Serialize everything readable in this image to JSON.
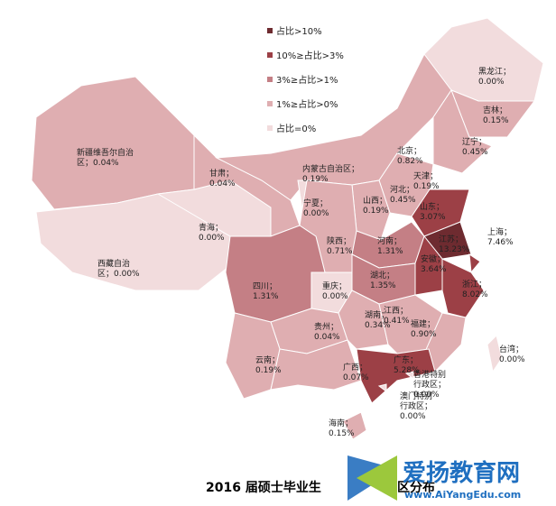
{
  "legend": [
    {
      "label": "占比>10%",
      "color": "#6e2b30"
    },
    {
      "label": "10%≥占比>3%",
      "color": "#9c4046"
    },
    {
      "label": "3%≥占比>1%",
      "color": "#c47f85"
    },
    {
      "label": "1%≥占比>0%",
      "color": "#dfaeb1"
    },
    {
      "label": "占比=0%",
      "color": "#f2dcdd"
    }
  ],
  "regions": [
    {
      "label": [
        "新疆维吾尔自治",
        "区；0.04%"
      ],
      "color": "#dfaeb1"
    },
    {
      "label": [
        "西藏自治",
        "区；0.00%"
      ],
      "color": "#f2dcdd"
    },
    {
      "label": [
        "青海；",
        "0.00%"
      ],
      "color": "#f2dcdd"
    },
    {
      "label": [
        "甘肃；",
        "0.04%"
      ],
      "color": "#dfaeb1"
    },
    {
      "label": [
        "内蒙古自治区；",
        "0.19%"
      ],
      "color": "#dfaeb1"
    },
    {
      "label": [
        "黑龙江；",
        "0.00%"
      ],
      "color": "#f2dcdd"
    },
    {
      "label": [
        "吉林；",
        "0.15%"
      ],
      "color": "#dfaeb1"
    },
    {
      "label": [
        "辽宁；",
        "0.45%"
      ],
      "color": "#dfaeb1"
    },
    {
      "label": [
        "北京；",
        "0.82%"
      ],
      "color": "#dfaeb1"
    },
    {
      "label": [
        "天津；",
        "0.19%"
      ],
      "color": "#dfaeb1"
    },
    {
      "label": [
        "河北；",
        "0.45%"
      ],
      "color": "#dfaeb1"
    },
    {
      "label": [
        "山西；",
        "0.19%"
      ],
      "color": "#dfaeb1"
    },
    {
      "label": [
        "宁夏；",
        "0.00%"
      ],
      "color": "#f2dcdd"
    },
    {
      "label": [
        "陕西；",
        "0.71%"
      ],
      "color": "#dfaeb1"
    },
    {
      "label": [
        "山东；",
        "3.07%"
      ],
      "color": "#9c4046"
    },
    {
      "label": [
        "河南；",
        "1.31%"
      ],
      "color": "#c47f85"
    },
    {
      "label": [
        "江苏；",
        "13.23%"
      ],
      "color": "#6e2b30"
    },
    {
      "label": [
        "安徽；",
        "3.64%"
      ],
      "color": "#9c4046"
    },
    {
      "label": [
        "上海；",
        "7.46%"
      ],
      "color": "#9c4046"
    },
    {
      "label": [
        "浙江；",
        "8.02%"
      ],
      "color": "#9c4046"
    },
    {
      "label": [
        "湖北；",
        "1.35%"
      ],
      "color": "#c47f85"
    },
    {
      "label": [
        "四川；",
        "1.31%"
      ],
      "color": "#c47f85"
    },
    {
      "label": [
        "重庆；",
        "0.00%"
      ],
      "color": "#f2dcdd"
    },
    {
      "label": [
        "贵州；",
        "0.04%"
      ],
      "color": "#dfaeb1"
    },
    {
      "label": [
        "云南；",
        "0.19%"
      ],
      "color": "#dfaeb1"
    },
    {
      "label": [
        "湖南；",
        "0.34%"
      ],
      "color": "#dfaeb1"
    },
    {
      "label": [
        "江西；",
        "0.41%"
      ],
      "color": "#dfaeb1"
    },
    {
      "label": [
        "福建；",
        "0.90%"
      ],
      "color": "#dfaeb1"
    },
    {
      "label": [
        "广西；",
        "0.07%"
      ],
      "color": "#dfaeb1"
    },
    {
      "label": [
        "广东；",
        "5.28%"
      ],
      "color": "#9c4046"
    },
    {
      "label": [
        "海南；",
        "0.15%"
      ],
      "color": "#dfaeb1"
    },
    {
      "label": [
        "台湾；",
        "0.00%"
      ],
      "color": "#f2dcdd"
    },
    {
      "label": [
        "香港特别",
        "行政区；",
        "0.00%"
      ],
      "color": "#f2dcdd"
    },
    {
      "label": [
        "澳门特别",
        "行政区；",
        "0.00%"
      ],
      "color": "#f2dcdd"
    }
  ],
  "title_parts": [
    "2016 届硕士毕业生",
    "区分布"
  ],
  "watermark": {
    "name": "爱扬教育网",
    "url": "www.AiYangEdu.com"
  }
}
